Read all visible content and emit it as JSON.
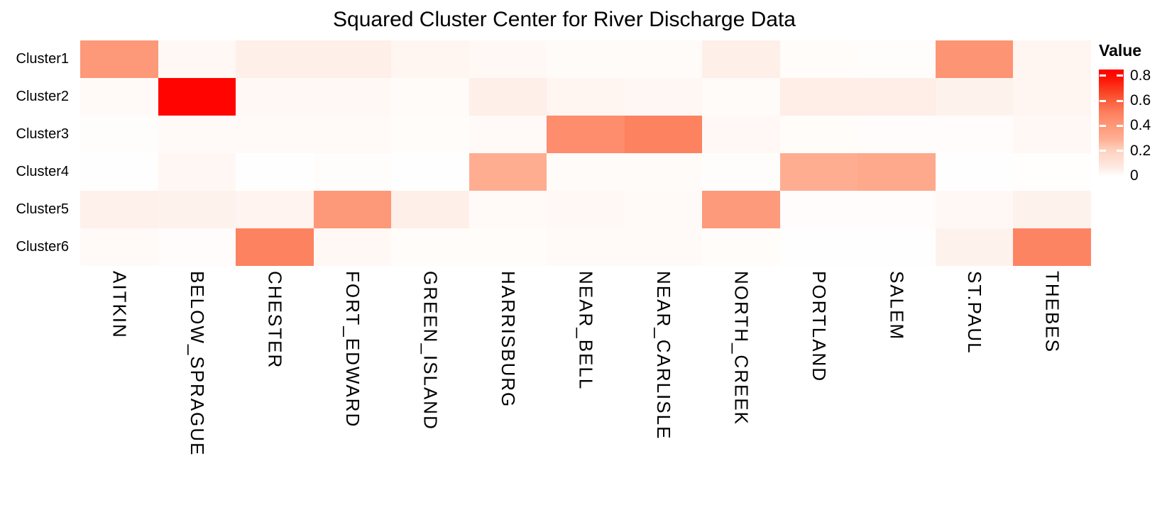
{
  "chart_data": {
    "type": "heatmap",
    "title": "Squared Cluster Center for River Discharge Data",
    "rows": [
      "Cluster1",
      "Cluster2",
      "Cluster3",
      "Cluster4",
      "Cluster5",
      "Cluster6"
    ],
    "columns": [
      "AITKIN",
      "BELOW_SPRAGUE",
      "CHESTER",
      "FORT_EDWARD",
      "GREEN_ISLAND",
      "HARRISBURG",
      "NEAR_BELL",
      "NEAR_CARLISLE",
      "NORTH_CREEK",
      "PORTLAND",
      "SALEM",
      "ST.PAUL",
      "THEBES"
    ],
    "values": [
      [
        0.4,
        0.02,
        0.05,
        0.05,
        0.03,
        0.02,
        0.012,
        0.012,
        0.05,
        0.01,
        0.006,
        0.42,
        0.03
      ],
      [
        0.015,
        0.83,
        0.02,
        0.02,
        0.012,
        0.05,
        0.03,
        0.025,
        0.012,
        0.055,
        0.055,
        0.04,
        0.03
      ],
      [
        0.006,
        0.015,
        0.015,
        0.015,
        0.01,
        0.015,
        0.45,
        0.5,
        0.02,
        0.01,
        0.008,
        0.008,
        0.02
      ],
      [
        0.002,
        0.025,
        0.002,
        0.006,
        0.002,
        0.3,
        0.012,
        0.012,
        0.006,
        0.3,
        0.32,
        0.002,
        0.004
      ],
      [
        0.045,
        0.04,
        0.035,
        0.4,
        0.05,
        0.015,
        0.02,
        0.015,
        0.39,
        0.008,
        0.008,
        0.02,
        0.04
      ],
      [
        0.015,
        0.008,
        0.5,
        0.02,
        0.01,
        0.01,
        0.015,
        0.015,
        0.01,
        0.002,
        0.002,
        0.04,
        0.49
      ]
    ],
    "legend": {
      "title": "Value",
      "ticks": [
        0.8,
        0.6,
        0.4,
        0.2,
        0
      ],
      "vmin": 0,
      "vmax": 0.85,
      "low_color": "#FFFFFF",
      "high_color": "#FF0000"
    },
    "colorscale": [
      [
        0.0,
        "#FFFFFF"
      ],
      [
        0.02,
        "#FFF8F5"
      ],
      [
        0.05,
        "#FEEFE9"
      ],
      [
        0.1,
        "#FEE4D9"
      ],
      [
        0.2,
        "#FED3C0"
      ],
      [
        0.3,
        "#FEAD91"
      ],
      [
        0.4,
        "#FD9879"
      ],
      [
        0.5,
        "#FD8260"
      ],
      [
        0.65,
        "#F94C2B"
      ],
      [
        0.8,
        "#FF0A00"
      ],
      [
        0.85,
        "#FF0000"
      ]
    ],
    "axis_text_color": "#000000",
    "grid_visible": false,
    "legend_position": "right"
  }
}
